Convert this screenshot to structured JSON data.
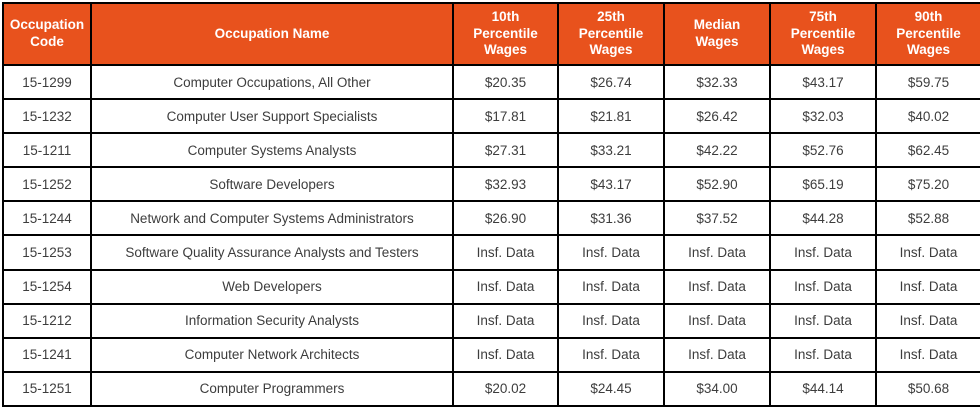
{
  "colors": {
    "header_bg": "#E8521D",
    "header_text": "#FFFFFF",
    "body_text": "#3D3D3D",
    "grid_border": "#000000"
  },
  "table": {
    "columns": [
      {
        "label": "Occupation\nCode"
      },
      {
        "label": "Occupation Name"
      },
      {
        "label": "10th\nPercentile\nWages"
      },
      {
        "label": "25th\nPercentile\nWages"
      },
      {
        "label": "Median\nWages"
      },
      {
        "label": "75th\nPercentile\nWages"
      },
      {
        "label": "90th\nPercentile\nWages"
      }
    ],
    "rows": [
      {
        "code": "15-1299",
        "name": "Computer Occupations, All Other",
        "wages": [
          "$20.35",
          "$26.74",
          "$32.33",
          "$43.17",
          "$59.75"
        ]
      },
      {
        "code": "15-1232",
        "name": "Computer User Support Specialists",
        "wages": [
          "$17.81",
          "$21.81",
          "$26.42",
          "$32.03",
          "$40.02"
        ]
      },
      {
        "code": "15-1211",
        "name": "Computer Systems Analysts",
        "wages": [
          "$27.31",
          "$33.21",
          "$42.22",
          "$52.76",
          "$62.45"
        ]
      },
      {
        "code": "15-1252",
        "name": "Software Developers",
        "wages": [
          "$32.93",
          "$43.17",
          "$52.90",
          "$65.19",
          "$75.20"
        ]
      },
      {
        "code": "15-1244",
        "name": "Network and Computer Systems Administrators",
        "wages": [
          "$26.90",
          "$31.36",
          "$37.52",
          "$44.28",
          "$52.88"
        ]
      },
      {
        "code": "15-1253",
        "name": "Software Quality Assurance Analysts and Testers",
        "wages": [
          "Insf. Data",
          "Insf. Data",
          "Insf. Data",
          "Insf. Data",
          "Insf. Data"
        ]
      },
      {
        "code": "15-1254",
        "name": "Web Developers",
        "wages": [
          "Insf. Data",
          "Insf. Data",
          "Insf. Data",
          "Insf. Data",
          "Insf. Data"
        ]
      },
      {
        "code": "15-1212",
        "name": "Information Security Analysts",
        "wages": [
          "Insf. Data",
          "Insf. Data",
          "Insf. Data",
          "Insf. Data",
          "Insf. Data"
        ]
      },
      {
        "code": "15-1241",
        "name": "Computer Network Architects",
        "wages": [
          "Insf. Data",
          "Insf. Data",
          "Insf. Data",
          "Insf. Data",
          "Insf. Data"
        ]
      },
      {
        "code": "15-1251",
        "name": "Computer Programmers",
        "wages": [
          "$20.02",
          "$24.45",
          "$34.00",
          "$44.14",
          "$50.68"
        ]
      }
    ]
  }
}
